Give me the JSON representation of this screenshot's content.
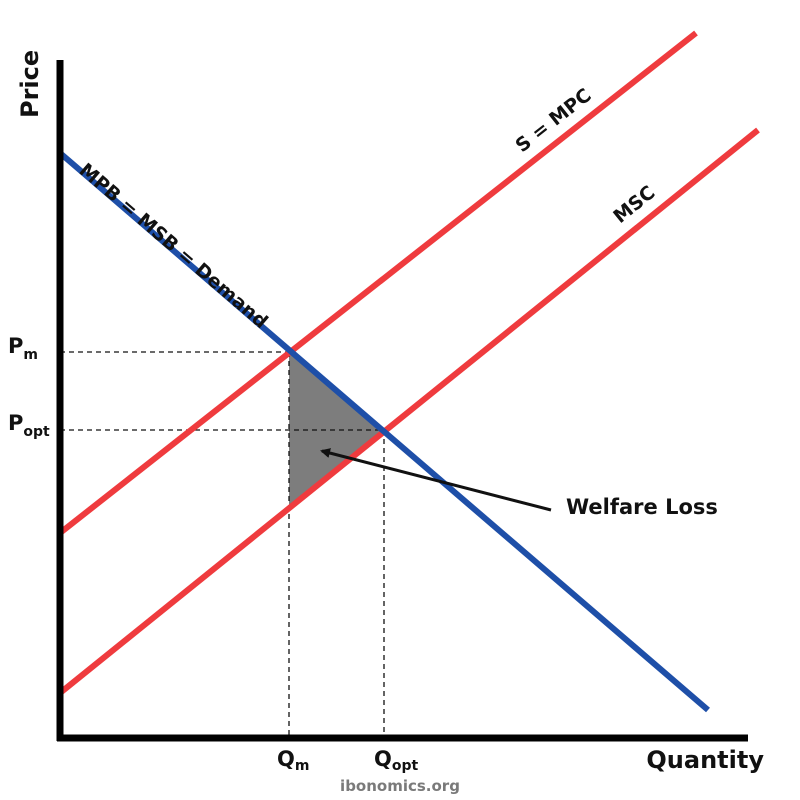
{
  "diagram": {
    "axes": {
      "y_label": "Price",
      "x_label": "Quantity"
    },
    "curves": {
      "demand": {
        "label": "MPB = MSB = Demand",
        "color": "#1e4fa8"
      },
      "supply": {
        "label": "S = MPC",
        "color": "#ef3b3e"
      },
      "msc": {
        "label": "MSC",
        "color": "#ef3b3e"
      }
    },
    "price_levels": {
      "pm": {
        "main": "P",
        "sub": "m"
      },
      "popt": {
        "main": "P",
        "sub": "opt"
      }
    },
    "quantity_levels": {
      "qm": {
        "main": "Q",
        "sub": "m"
      },
      "qopt": {
        "main": "Q",
        "sub": "opt"
      }
    },
    "welfare_loss": {
      "label": "Welfare Loss",
      "fill": "#7d7d7d"
    },
    "credit": "ibonomics.org"
  }
}
